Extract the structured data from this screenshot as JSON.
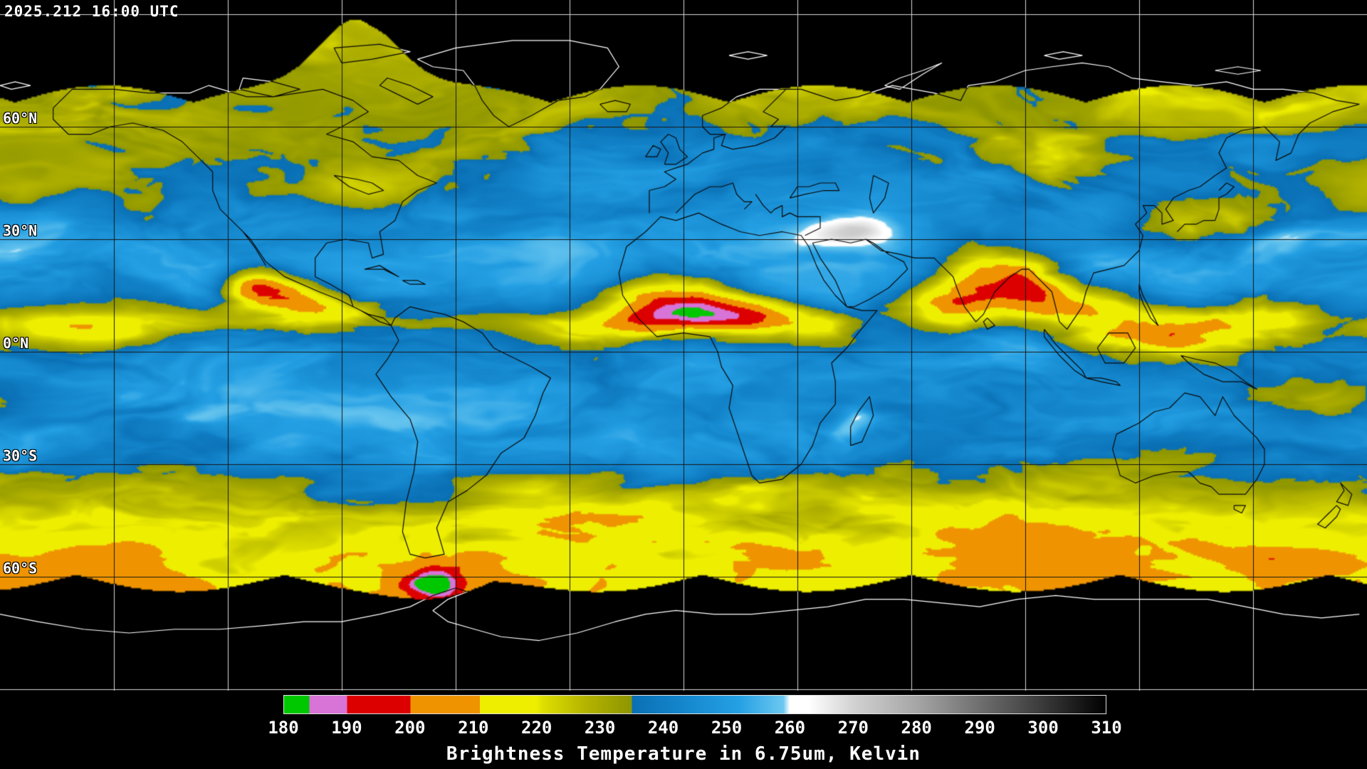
{
  "header": {
    "timestamp": "2025.212 16:00 UTC"
  },
  "map": {
    "latitude_labels": [
      {
        "text": "60°N",
        "lat": 60
      },
      {
        "text": "30°N",
        "lat": 30
      },
      {
        "text": "0°N",
        "lat": 0
      },
      {
        "text": "30°S",
        "lat": -30
      },
      {
        "text": "60°S",
        "lat": -60
      }
    ],
    "grid": {
      "lon_spacing_deg": 30,
      "lat_spacing_deg": 30
    },
    "no_data_color": "#000000",
    "grid_color_over_data": "#161616",
    "grid_color_over_nodata": "#d8d8d8",
    "coastline_color_over_data": "#0a0a0a",
    "coastline_color_over_nodata": "#ffffff"
  },
  "colorbar": {
    "title": "Brightness Temperature in 6.75um, Kelvin",
    "unit": "Kelvin",
    "min": 180,
    "max": 310,
    "tick_labels": [
      "180",
      "190",
      "200",
      "210",
      "220",
      "230",
      "240",
      "250",
      "260",
      "270",
      "280",
      "290",
      "300",
      "310"
    ],
    "stops": [
      {
        "value": 180,
        "color": "#00c800"
      },
      {
        "value": 184,
        "color": "#00c800"
      },
      {
        "value": 184,
        "color": "#d873d8"
      },
      {
        "value": 190,
        "color": "#d873d8"
      },
      {
        "value": 190,
        "color": "#dc0000"
      },
      {
        "value": 200,
        "color": "#dc0000"
      },
      {
        "value": 200,
        "color": "#ef9400"
      },
      {
        "value": 211,
        "color": "#ef9400"
      },
      {
        "value": 211,
        "color": "#eeee00"
      },
      {
        "value": 220,
        "color": "#eeee00"
      },
      {
        "value": 221,
        "color": "#dede00"
      },
      {
        "value": 228,
        "color": "#b2b200"
      },
      {
        "value": 235,
        "color": "#8e9600"
      },
      {
        "value": 235,
        "color": "#0a6fb4"
      },
      {
        "value": 244,
        "color": "#1689cf"
      },
      {
        "value": 252,
        "color": "#25a0e4"
      },
      {
        "value": 259,
        "color": "#6cc8f0"
      },
      {
        "value": 260,
        "color": "#ffffff"
      },
      {
        "value": 263,
        "color": "#ffffff"
      },
      {
        "value": 270,
        "color": "#d2d2d2"
      },
      {
        "value": 280,
        "color": "#a6a6a6"
      },
      {
        "value": 290,
        "color": "#6f6f6f"
      },
      {
        "value": 300,
        "color": "#3a3a3a"
      },
      {
        "value": 310,
        "color": "#000000"
      }
    ]
  }
}
